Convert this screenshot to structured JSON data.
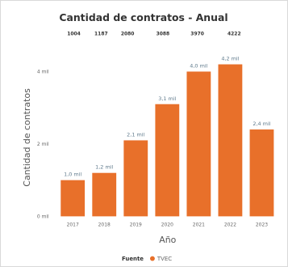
{
  "chart_data": {
    "type": "bar",
    "title": "Cantidad de contratos - Anual",
    "xlabel": "Año",
    "ylabel": "Cantidad de contratos",
    "categories": [
      "2017",
      "2018",
      "2019",
      "2020",
      "2021",
      "2022",
      "2023"
    ],
    "series": [
      {
        "name": "TVEC",
        "color": "#E8702A",
        "values": [
          1.0,
          1.2,
          2.1,
          3.1,
          4.0,
          4.2,
          2.4
        ],
        "data_labels": [
          "1,0 mil",
          "1,2 mil",
          "2,1 mil",
          "3,1 mil",
          "4,0 mil",
          "4,2 mil",
          "2,4 mil"
        ]
      }
    ],
    "top_values": [
      "1004",
      "1187",
      "2080",
      "3088",
      "3970",
      "4222"
    ],
    "ylim": [
      0,
      4.6
    ],
    "yticks": [
      0,
      2,
      4
    ],
    "ytick_labels": [
      "0 mil",
      "2 mil",
      "4 mil"
    ],
    "legend": {
      "title": "Fuente",
      "placement": "bottom-center"
    },
    "grid": false
  }
}
